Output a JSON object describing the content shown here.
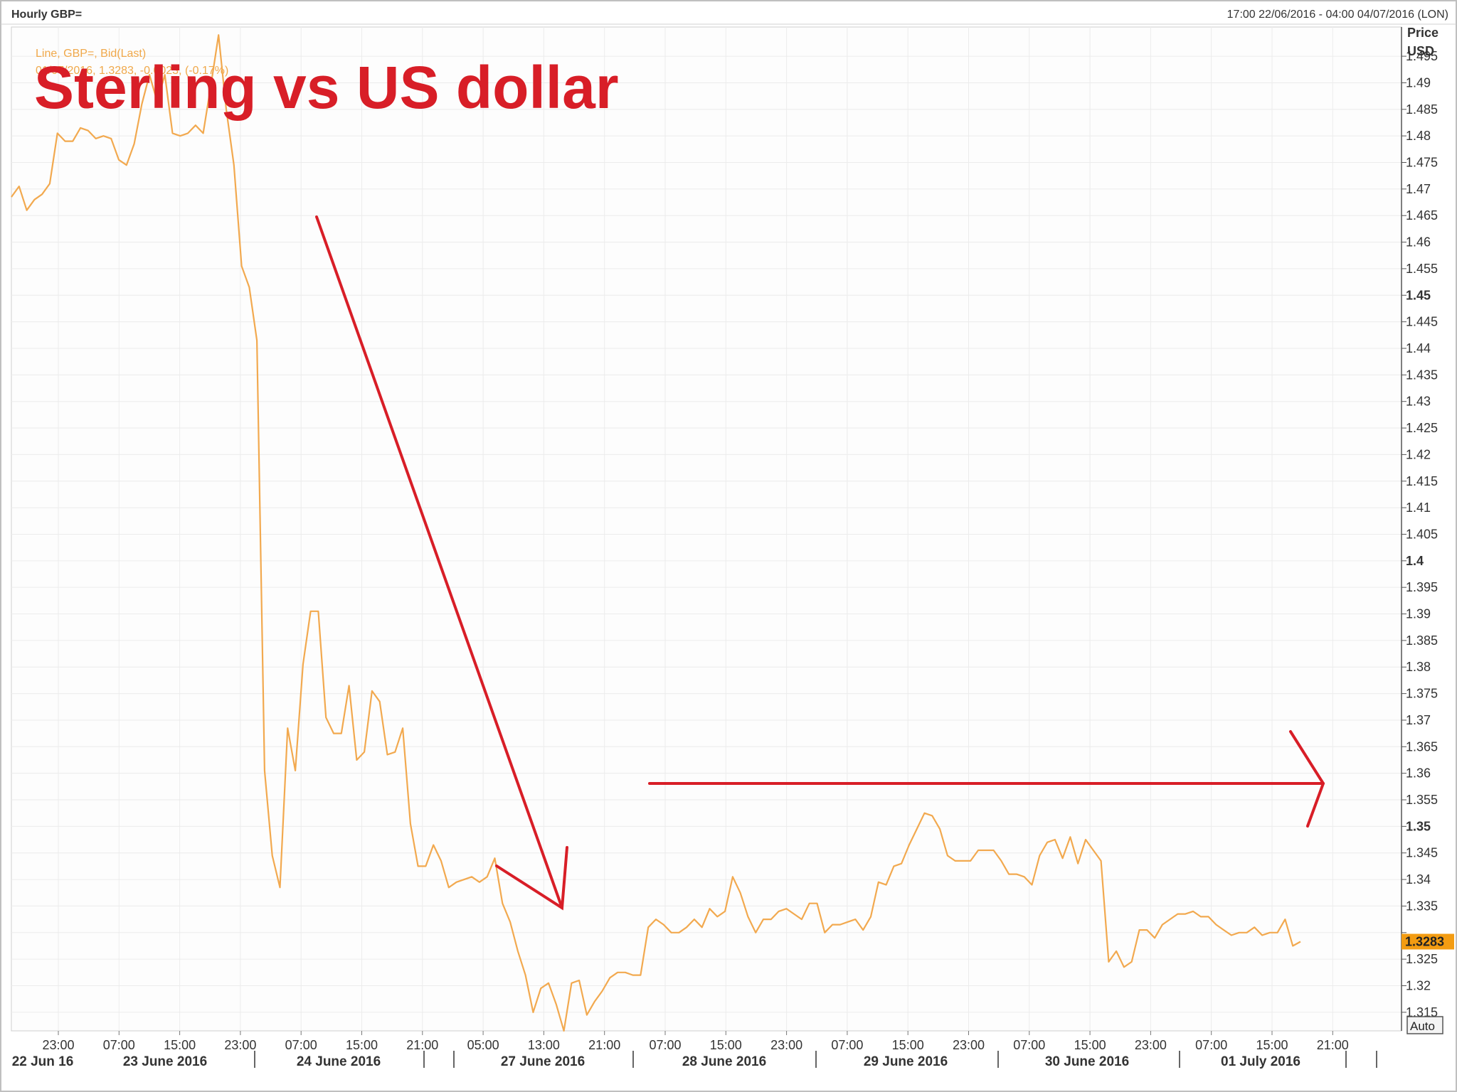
{
  "header": {
    "left_title": "Hourly GBP=",
    "right_range": "17:00 22/06/2016 - 04:00 04/07/2016 (LON)"
  },
  "axis": {
    "price_label": "Price",
    "unit_label": "USD",
    "auto_button": "Auto"
  },
  "legend": {
    "line1": "Line, GBP=, Bid(Last)",
    "line2": "01/07/2016, 1.3283, -0.0023, (-0.17%)"
  },
  "overlay_title": "Sterling vs US dollar",
  "colors": {
    "series": "#f2a94f",
    "annotation": "#d81e27",
    "last_badge": "#f39c12",
    "grid": "#ececec"
  },
  "chart_data": {
    "type": "line",
    "title": "Sterling vs US dollar",
    "ylabel": "Price USD",
    "ylim": [
      1.3115,
      1.5005
    ],
    "yticks": [
      1.315,
      1.32,
      1.325,
      1.33,
      1.335,
      1.34,
      1.345,
      1.35,
      1.355,
      1.36,
      1.365,
      1.37,
      1.375,
      1.38,
      1.385,
      1.39,
      1.395,
      1.4,
      1.405,
      1.41,
      1.415,
      1.42,
      1.425,
      1.43,
      1.435,
      1.44,
      1.445,
      1.45,
      1.455,
      1.46,
      1.465,
      1.47,
      1.475,
      1.48,
      1.485,
      1.49,
      1.495
    ],
    "ytick_labels": [
      "1.315",
      "1.32",
      "1.325",
      "",
      "1.335",
      "1.34",
      "1.345",
      "1.35",
      "1.355",
      "1.36",
      "1.365",
      "1.37",
      "1.375",
      "1.38",
      "1.385",
      "1.39",
      "1.395",
      "1.4",
      "1.405",
      "1.41",
      "1.415",
      "1.42",
      "1.425",
      "1.43",
      "1.435",
      "1.44",
      "1.445",
      "1.45",
      "1.455",
      "1.46",
      "1.465",
      "1.47",
      "1.475",
      "1.48",
      "1.485",
      "1.49",
      "1.495"
    ],
    "ytick_major": [
      1.35,
      1.4,
      1.45
    ],
    "last_value_label": "1.3283",
    "x_tick_labels": [
      "23:00",
      "07:00",
      "15:00",
      "23:00",
      "07:00",
      "15:00",
      "21:00",
      "05:00",
      "13:00",
      "21:00",
      "07:00",
      "15:00",
      "23:00",
      "07:00",
      "15:00",
      "23:00",
      "07:00",
      "15:00",
      "23:00",
      "07:00",
      "15:00",
      "21:00"
    ],
    "x_day_labels": [
      "22 Jun 16",
      "23 June 2016",
      "24 June 2016",
      "27 June 2016",
      "28 June 2016",
      "29 June 2016",
      "30 June 2016",
      "01 July 2016"
    ],
    "series": [
      {
        "name": "GBP=",
        "values": [
          1.4685,
          1.4705,
          1.466,
          1.468,
          1.469,
          1.471,
          1.4805,
          1.479,
          1.479,
          1.4815,
          1.481,
          1.4795,
          1.48,
          1.4795,
          1.4755,
          1.4745,
          1.4785,
          1.486,
          1.4915,
          1.4865,
          1.4915,
          1.4805,
          1.48,
          1.4805,
          1.482,
          1.4805,
          1.4895,
          1.499,
          1.485,
          1.4745,
          1.4555,
          1.4515,
          1.4415,
          1.3605,
          1.3445,
          1.3385,
          1.3685,
          1.3605,
          1.3805,
          1.3905,
          1.3905,
          1.3705,
          1.3675,
          1.3675,
          1.3765,
          1.3625,
          1.364,
          1.3755,
          1.3735,
          1.3635,
          1.364,
          1.3685,
          1.3505,
          1.3425,
          1.3425,
          1.3465,
          1.3435,
          1.3385,
          1.3395,
          1.34,
          1.3405,
          1.3395,
          1.3405,
          1.344,
          1.3355,
          1.332,
          1.3265,
          1.322,
          1.315,
          1.3195,
          1.3205,
          1.3165,
          1.3115,
          1.3205,
          1.321,
          1.3145,
          1.317,
          1.319,
          1.3215,
          1.3225,
          1.3225,
          1.322,
          1.322,
          1.331,
          1.3325,
          1.3315,
          1.33,
          1.33,
          1.331,
          1.3325,
          1.331,
          1.3345,
          1.333,
          1.334,
          1.3405,
          1.3375,
          1.333,
          1.33,
          1.3325,
          1.3325,
          1.334,
          1.3345,
          1.3335,
          1.3325,
          1.3355,
          1.3355,
          1.33,
          1.3315,
          1.3315,
          1.332,
          1.3325,
          1.3305,
          1.333,
          1.3395,
          1.339,
          1.3425,
          1.343,
          1.3465,
          1.3495,
          1.3525,
          1.352,
          1.3495,
          1.3445,
          1.3435,
          1.3435,
          1.3435,
          1.3455,
          1.3455,
          1.3455,
          1.3435,
          1.341,
          1.341,
          1.3405,
          1.339,
          1.3445,
          1.347,
          1.3475,
          1.344,
          1.348,
          1.343,
          1.3475,
          1.3455,
          1.3435,
          1.3245,
          1.3265,
          1.3235,
          1.3245,
          1.3305,
          1.3305,
          1.329,
          1.3315,
          1.3325,
          1.3335,
          1.3335,
          1.334,
          1.333,
          1.333,
          1.3315,
          1.3305,
          1.3295,
          1.33,
          1.33,
          1.331,
          1.3295,
          1.33,
          1.33,
          1.3325,
          1.3275,
          1.3283
        ]
      }
    ]
  }
}
